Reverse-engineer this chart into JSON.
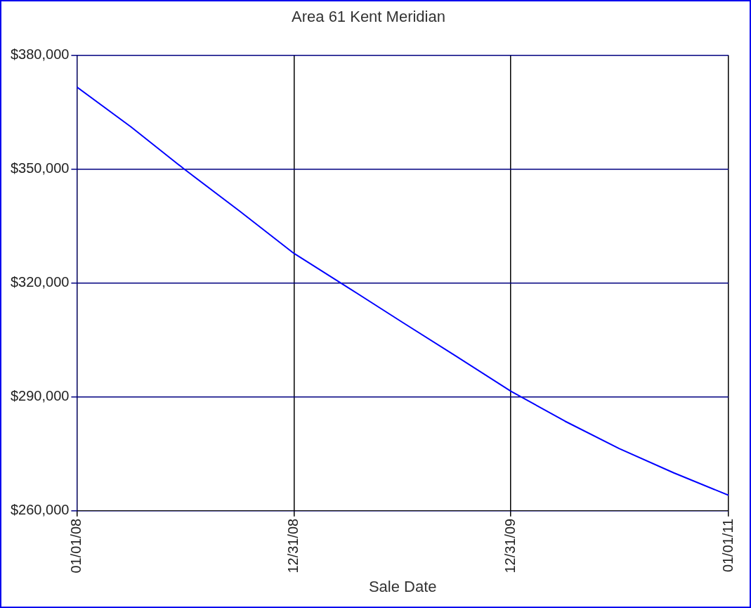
{
  "chart_data": {
    "type": "line",
    "title": "Area 61 Kent Meridian",
    "xlabel": "Sale Date",
    "x": [
      "2008-01-01",
      "2008-04-01",
      "2008-07-01",
      "2008-10-01",
      "2008-12-31",
      "2009-04-01",
      "2009-07-01",
      "2009-10-01",
      "2009-12-31",
      "2010-04-01",
      "2010-07-01",
      "2010-10-01",
      "2011-01-01"
    ],
    "series": [
      {
        "color": "#0000ff",
        "values": [
          371600,
          361100,
          349800,
          338900,
          327800,
          318800,
          309700,
          300600,
          291500,
          283600,
          276400,
          270000,
          264100
        ]
      }
    ],
    "xlim": [
      "2008-01-01",
      "2011-01-01"
    ],
    "xticks": [
      {
        "value": "2008-01-01",
        "label": "01/01/08"
      },
      {
        "value": "2008-12-31",
        "label": "12/31/08"
      },
      {
        "value": "2009-12-31",
        "label": "12/31/09"
      },
      {
        "value": "2011-01-01",
        "label": "01/01/11"
      }
    ],
    "ylim": [
      260000,
      380000
    ],
    "yticks": [
      {
        "value": 260000,
        "label": "$260,000"
      },
      {
        "value": 290000,
        "label": "$290,000"
      },
      {
        "value": 320000,
        "label": "$320,000"
      },
      {
        "value": 350000,
        "label": "$350,000"
      },
      {
        "value": 380000,
        "label": "$380,000"
      }
    ],
    "grid": true,
    "legend": false,
    "marker": "none",
    "line_style": "solid"
  }
}
